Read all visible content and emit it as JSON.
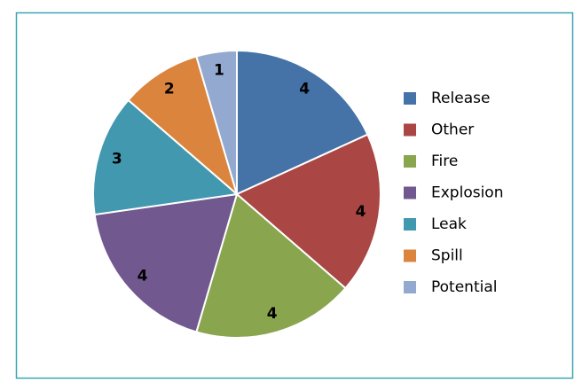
{
  "chart_data": {
    "type": "pie",
    "categories": [
      "Release",
      "Other",
      "Fire",
      "Explosion",
      "Leak",
      "Spill",
      "Potential"
    ],
    "values": [
      4,
      4,
      4,
      4,
      3,
      2,
      1
    ],
    "colors": [
      "#4572a7",
      "#aa4643",
      "#89a54e",
      "#71588f",
      "#4198af",
      "#db843d",
      "#93a9d0"
    ],
    "legend": "right"
  }
}
